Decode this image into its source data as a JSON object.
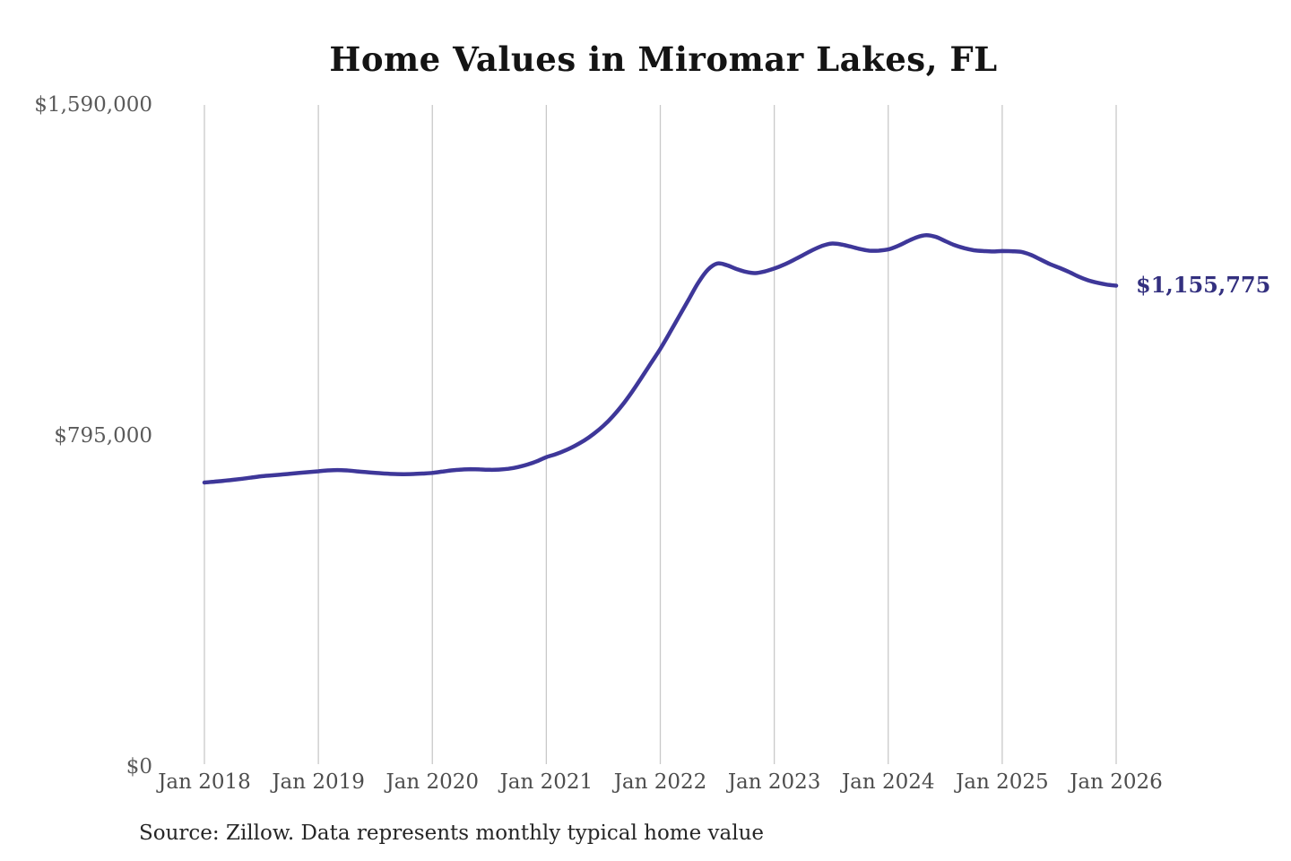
{
  "chart": {
    "title": "Home Values in Miromar Lakes, FL",
    "source_note": "Source: Zillow. Data represents monthly typical home value",
    "end_label": "$1,155,775",
    "colors": {
      "line": "#3e3799",
      "end_label": "#33307f",
      "gridline": "#c9c9c9",
      "y_tick_label": "#5a5a5a",
      "x_tick_label": "#4d4d4d",
      "title": "#141414",
      "source": "#262626",
      "background": "#ffffff"
    }
  },
  "chart_data": {
    "type": "line",
    "title": "Home Values in Miromar Lakes, FL",
    "xlabel": "",
    "ylabel": "",
    "ylim": [
      0,
      1590000
    ],
    "grid": "vertical-only",
    "legend": "none",
    "y_ticks": [
      {
        "value": 0,
        "label": "$0"
      },
      {
        "value": 795000,
        "label": "$795,000"
      },
      {
        "value": 1590000,
        "label": "$1,590,000"
      }
    ],
    "x_tick_labels": [
      "Jan 2018",
      "Jan 2019",
      "Jan 2020",
      "Jan 2021",
      "Jan 2022",
      "Jan 2023",
      "Jan 2024",
      "Jan 2025",
      "Jan 2026"
    ],
    "x_start": "2018-01",
    "x_interval": "month",
    "final_value": 1155775,
    "final_value_label": "$1,155,775",
    "series": [
      {
        "name": "Monthly typical home value",
        "unit": "USD",
        "values": [
          683000,
          685000,
          687000,
          689500,
          692000,
          695000,
          698000,
          700000,
          702000,
          704000,
          706000,
          708000,
          710000,
          712000,
          713000,
          712000,
          710000,
          708000,
          706000,
          704500,
          703500,
          703000,
          703500,
          704500,
          706000,
          709000,
          712000,
          714000,
          715000,
          714500,
          713500,
          714000,
          716000,
          720000,
          726000,
          734000,
          744000,
          751000,
          760000,
          771000,
          784000,
          800000,
          819000,
          842000,
          869000,
          900000,
          934000,
          969000,
          1004000,
          1043000,
          1083000,
          1123000,
          1163000,
          1194000,
          1209000,
          1205000,
          1196000,
          1189000,
          1186000,
          1190000,
          1197000,
          1206000,
          1217000,
          1229000,
          1241000,
          1251000,
          1257000,
          1255000,
          1250000,
          1244000,
          1240000,
          1240000,
          1243000,
          1251000,
          1262000,
          1272000,
          1277000,
          1273000,
          1263000,
          1253000,
          1246000,
          1241000,
          1239000,
          1238000,
          1239000,
          1238500,
          1237000,
          1230000,
          1219000,
          1208000,
          1199000,
          1189000,
          1178000,
          1169000,
          1163000,
          1158500,
          1155775
        ]
      }
    ]
  }
}
